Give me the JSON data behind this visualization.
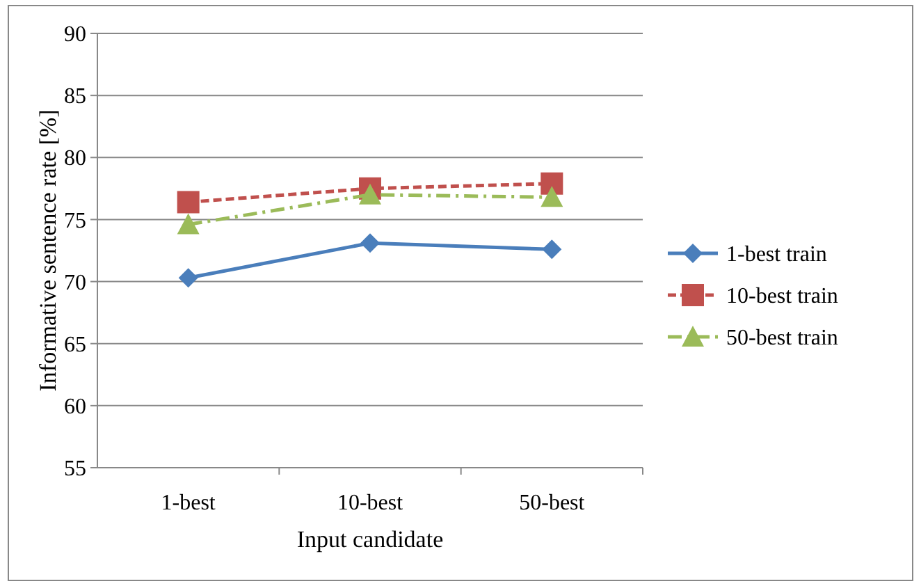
{
  "chart_data": {
    "type": "line",
    "xlabel": "Input candidate",
    "ylabel": "Informative sentence rate [%]",
    "categories": [
      "1-best",
      "10-best",
      "50-best"
    ],
    "series": [
      {
        "name": "1-best train",
        "color": "#4a7ebb",
        "values": [
          70.3,
          73.1,
          72.6
        ],
        "marker": "diamond",
        "line_style": "solid"
      },
      {
        "name": "10-best train",
        "color": "#c0504d",
        "values": [
          76.4,
          77.5,
          77.9
        ],
        "marker": "square",
        "line_style": "dashed"
      },
      {
        "name": "50-best train",
        "color": "#9bbb59",
        "values": [
          74.6,
          77.0,
          76.8
        ],
        "marker": "triangle",
        "line_style": "dashdot"
      }
    ],
    "ylim": [
      55,
      90
    ],
    "yticks": [
      55,
      60,
      65,
      70,
      75,
      80,
      85,
      90
    ],
    "grid": "y",
    "legend": "right"
  }
}
